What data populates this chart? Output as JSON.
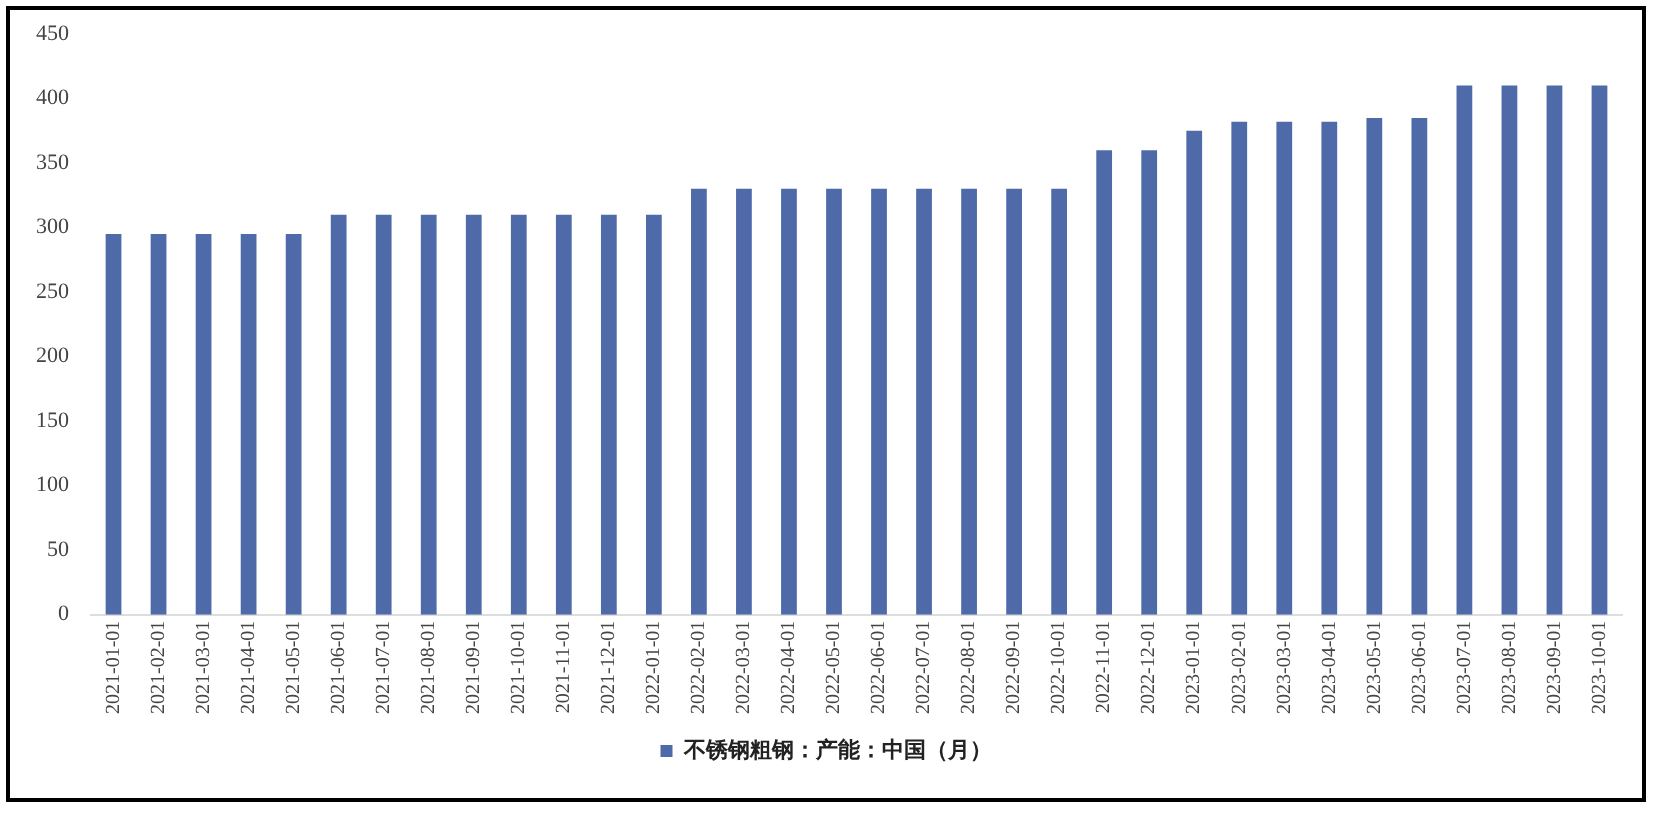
{
  "chart_data": {
    "type": "bar",
    "categories": [
      "2021-01-01",
      "2021-02-01",
      "2021-03-01",
      "2021-04-01",
      "2021-05-01",
      "2021-06-01",
      "2021-07-01",
      "2021-08-01",
      "2021-09-01",
      "2021-10-01",
      "2021-11-01",
      "2021-12-01",
      "2022-01-01",
      "2022-02-01",
      "2022-03-01",
      "2022-04-01",
      "2022-05-01",
      "2022-06-01",
      "2022-07-01",
      "2022-08-01",
      "2022-09-01",
      "2022-10-01",
      "2022-11-01",
      "2022-12-01",
      "2023-01-01",
      "2023-02-01",
      "2023-03-01",
      "2023-04-01",
      "2023-05-01",
      "2023-06-01",
      "2023-07-01",
      "2023-08-01",
      "2023-09-01",
      "2023-10-01"
    ],
    "series": [
      {
        "name": "不锈钢粗钢：产能：中国（月）",
        "color": "#4f6aa8",
        "values": [
          295,
          295,
          295,
          295,
          295,
          310,
          310,
          310,
          310,
          310,
          310,
          310,
          310,
          330,
          330,
          330,
          330,
          330,
          330,
          330,
          330,
          330,
          360,
          360,
          375,
          382,
          382,
          382,
          385,
          385,
          410,
          410,
          410,
          410
        ]
      }
    ],
    "ylim": [
      0,
      450
    ],
    "yticks": [
      0,
      50,
      100,
      150,
      200,
      250,
      300,
      350,
      400,
      450
    ],
    "grid": false,
    "legend": "bottom"
  }
}
